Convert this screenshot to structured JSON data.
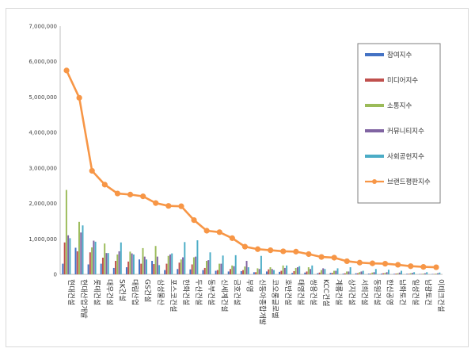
{
  "chart_data": {
    "type": "bar",
    "ylim": [
      0,
      7000000
    ],
    "yticks": [
      "0",
      "1,000,000",
      "2,000,000",
      "3,000,000",
      "4,000,000",
      "5,000,000",
      "6,000,000",
      "7,000,000"
    ],
    "grid": false,
    "legend_position": "right",
    "categories": [
      "현대건설",
      "현대산업개발",
      "롯데건설",
      "대우건설",
      "SK건설",
      "대림산업",
      "GS건설",
      "삼성물산",
      "포스코건설",
      "한화건설",
      "두산건설",
      "동부건설",
      "신세계건설",
      "금호건설",
      "부영",
      "신동아종합개발",
      "코오롱글로벌",
      "호반건설",
      "태영건설",
      "쌍용건설",
      "KCC건설",
      "계룡건설",
      "상지건설",
      "서희건설",
      "동원건설",
      "한신공영",
      "남화토건",
      "일성건설",
      "남광토건",
      "이테크건설"
    ],
    "series": [
      {
        "name": "참여지수",
        "color": "#4472c4",
        "type": "bar",
        "values": [
          300000,
          750000,
          280000,
          300000,
          180000,
          200000,
          420000,
          380000,
          120000,
          150000,
          140000,
          120000,
          100000,
          80000,
          90000,
          60000,
          80000,
          70000,
          40000,
          50000,
          30000,
          40000,
          20000,
          30000,
          20000,
          20000,
          15000,
          15000,
          10000,
          10000
        ]
      },
      {
        "name": "미디어지수",
        "color": "#c0504d",
        "type": "bar",
        "values": [
          900000,
          650000,
          620000,
          470000,
          380000,
          360000,
          300000,
          290000,
          300000,
          330000,
          280000,
          180000,
          120000,
          150000,
          120000,
          60000,
          140000,
          100000,
          90000,
          80000,
          50000,
          40000,
          30000,
          30000,
          20000,
          30000,
          20000,
          15000,
          10000,
          10000
        ]
      },
      {
        "name": "소통지수",
        "color": "#9bbb59",
        "type": "bar",
        "values": [
          2380000,
          1480000,
          760000,
          870000,
          560000,
          640000,
          740000,
          800000,
          520000,
          420000,
          480000,
          380000,
          300000,
          250000,
          220000,
          170000,
          200000,
          250000,
          180000,
          200000,
          120000,
          100000,
          80000,
          60000,
          50000,
          40000,
          30000,
          30000,
          20000,
          20000
        ]
      },
      {
        "name": "커뮤니티지수",
        "color": "#8064a2",
        "type": "bar",
        "values": [
          1100000,
          1180000,
          950000,
          600000,
          650000,
          590000,
          500000,
          500000,
          560000,
          480000,
          500000,
          400000,
          300000,
          230000,
          380000,
          150000,
          150000,
          180000,
          200000,
          150000,
          170000,
          100000,
          80000,
          80000,
          60000,
          60000,
          50000,
          40000,
          30000,
          30000
        ]
      },
      {
        "name": "사회공헌지수",
        "color": "#4bacc6",
        "type": "bar",
        "values": [
          1020000,
          1380000,
          920000,
          600000,
          900000,
          560000,
          420000,
          260000,
          590000,
          910000,
          960000,
          620000,
          530000,
          540000,
          200000,
          520000,
          120000,
          250000,
          230000,
          250000,
          150000,
          170000,
          200000,
          100000,
          150000,
          130000,
          100000,
          60000,
          60000,
          50000
        ]
      },
      {
        "name": "브랜드평판지수",
        "color": "#f79646",
        "type": "line",
        "values": [
          5750000,
          4980000,
          2920000,
          2530000,
          2280000,
          2250000,
          2200000,
          2010000,
          1930000,
          1920000,
          1530000,
          1230000,
          1190000,
          1020000,
          780000,
          710000,
          680000,
          650000,
          640000,
          570000,
          490000,
          470000,
          370000,
          330000,
          310000,
          300000,
          270000,
          230000,
          210000,
          200000
        ]
      }
    ]
  }
}
